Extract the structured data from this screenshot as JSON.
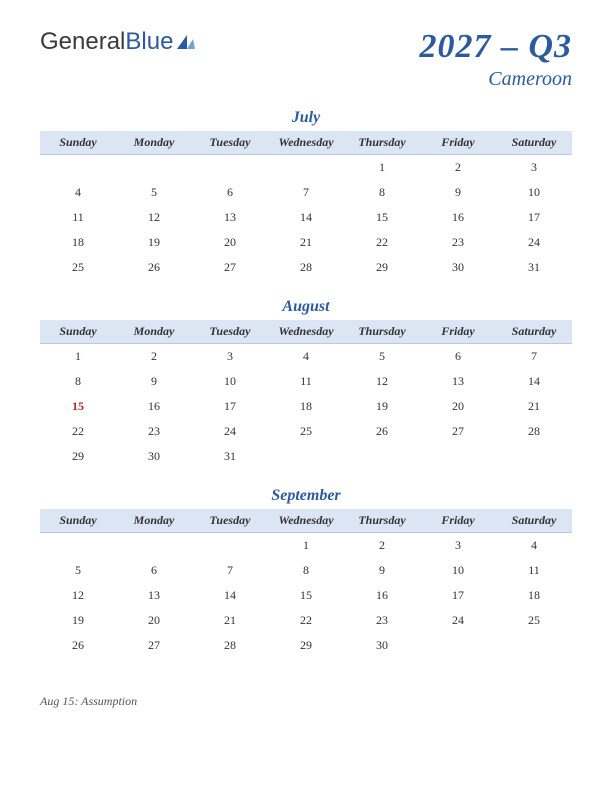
{
  "logo": {
    "text1": "General",
    "text2": "Blue"
  },
  "title": {
    "main": "2027 – Q3",
    "sub": "Cameroon"
  },
  "dayHeaders": [
    "Sunday",
    "Monday",
    "Tuesday",
    "Wednesday",
    "Thursday",
    "Friday",
    "Saturday"
  ],
  "colors": {
    "accent": "#2b5a9e",
    "headerRow": "#dbe5f3",
    "headerBorder": "#b8c8e0",
    "holiday": "#b02a2a",
    "text": "#333333",
    "background": "#ffffff"
  },
  "months": [
    {
      "name": "July",
      "weeks": [
        [
          "",
          "",
          "",
          "",
          "1",
          "2",
          "3"
        ],
        [
          "4",
          "5",
          "6",
          "7",
          "8",
          "9",
          "10"
        ],
        [
          "11",
          "12",
          "13",
          "14",
          "15",
          "16",
          "17"
        ],
        [
          "18",
          "19",
          "20",
          "21",
          "22",
          "23",
          "24"
        ],
        [
          "25",
          "26",
          "27",
          "28",
          "29",
          "30",
          "31"
        ]
      ],
      "holidays": []
    },
    {
      "name": "August",
      "weeks": [
        [
          "1",
          "2",
          "3",
          "4",
          "5",
          "6",
          "7"
        ],
        [
          "8",
          "9",
          "10",
          "11",
          "12",
          "13",
          "14"
        ],
        [
          "15",
          "16",
          "17",
          "18",
          "19",
          "20",
          "21"
        ],
        [
          "22",
          "23",
          "24",
          "25",
          "26",
          "27",
          "28"
        ],
        [
          "29",
          "30",
          "31",
          "",
          "",
          "",
          ""
        ]
      ],
      "holidays": [
        "15"
      ]
    },
    {
      "name": "September",
      "weeks": [
        [
          "",
          "",
          "",
          "1",
          "2",
          "3",
          "4"
        ],
        [
          "5",
          "6",
          "7",
          "8",
          "9",
          "10",
          "11"
        ],
        [
          "12",
          "13",
          "14",
          "15",
          "16",
          "17",
          "18"
        ],
        [
          "19",
          "20",
          "21",
          "22",
          "23",
          "24",
          "25"
        ],
        [
          "26",
          "27",
          "28",
          "29",
          "30",
          "",
          ""
        ]
      ],
      "holidays": []
    }
  ],
  "notes": "Aug 15: Assumption"
}
